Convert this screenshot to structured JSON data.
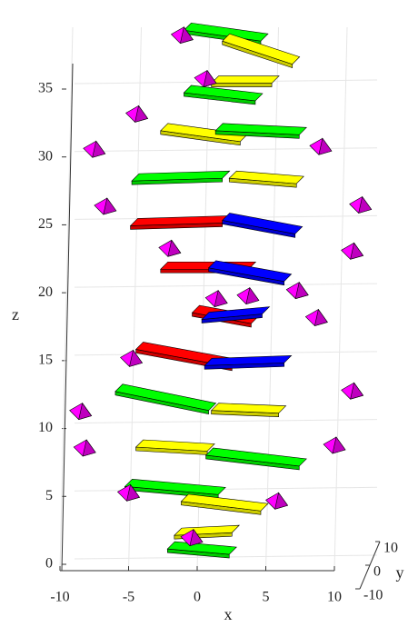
{
  "chart_data": {
    "type": "scatter3d",
    "xlabel": "x",
    "ylabel": "y",
    "zlabel": "z",
    "xlim": [
      -10,
      10
    ],
    "xticks": [
      -10,
      -5,
      0,
      5,
      10
    ],
    "ylim": [
      -10,
      10
    ],
    "yticks": [
      -10,
      0,
      10
    ],
    "zlim": [
      0,
      35
    ],
    "zticks": [
      0,
      5,
      10,
      15,
      20,
      25,
      30,
      35
    ],
    "grid": true,
    "slabs": [
      {
        "color": "#00ff00",
        "x1": -0.7,
        "z1": 39.6,
        "x2": 4.9,
        "z2": 38.8
      },
      {
        "color": "#ffff00",
        "x1": 2.1,
        "z1": 38.8,
        "x2": 7.2,
        "z2": 37.1
      },
      {
        "color": "#ffff00",
        "x1": 1.3,
        "z1": 35.7,
        "x2": 5.7,
        "z2": 35.7
      },
      {
        "color": "#00ff00",
        "x1": -0.7,
        "z1": 35.0,
        "x2": 4.5,
        "z2": 34.4
      },
      {
        "color": "#ffff00",
        "x1": -2.4,
        "z1": 32.2,
        "x2": 3.4,
        "z2": 31.4
      },
      {
        "color": "#00ff00",
        "x1": 1.6,
        "z1": 32.2,
        "x2": 7.7,
        "z2": 31.9
      },
      {
        "color": "#00ff00",
        "x1": -4.5,
        "z1": 28.5,
        "x2": 2.1,
        "z2": 28.7
      },
      {
        "color": "#ffff00",
        "x1": 2.6,
        "z1": 28.7,
        "x2": 7.5,
        "z2": 28.3
      },
      {
        "color": "#ff0000",
        "x1": -4.6,
        "z1": 25.2,
        "x2": 2.1,
        "z2": 25.4
      },
      {
        "color": "#0000ff",
        "x1": 2.1,
        "z1": 25.6,
        "x2": 7.4,
        "z2": 24.6
      },
      {
        "color": "#ff0000",
        "x1": -2.4,
        "z1": 22.0,
        "x2": 4.0,
        "z2": 22.0
      },
      {
        "color": "#0000ff",
        "x1": 1.1,
        "z1": 22.1,
        "x2": 6.6,
        "z2": 21.1
      },
      {
        "color": "#ff0000",
        "x1": -0.1,
        "z1": 18.8,
        "x2": 4.2,
        "z2": 18.0
      },
      {
        "color": "#0000ff",
        "x1": 0.6,
        "z1": 18.3,
        "x2": 5.0,
        "z2": 18.7
      },
      {
        "color": "#ff0000",
        "x1": -4.2,
        "z1": 16.1,
        "x2": 2.8,
        "z2": 14.8
      },
      {
        "color": "#0000ff",
        "x1": 0.8,
        "z1": 14.9,
        "x2": 6.6,
        "z2": 15.1
      },
      {
        "color": "#00ff00",
        "x1": -5.7,
        "z1": 13.0,
        "x2": 1.1,
        "z2": 11.6
      },
      {
        "color": "#ffff00",
        "x1": 1.3,
        "z1": 11.6,
        "x2": 6.2,
        "z2": 11.4
      },
      {
        "color": "#ffff00",
        "x1": -4.2,
        "z1": 8.9,
        "x2": 1.0,
        "z2": 8.6
      },
      {
        "color": "#00ff00",
        "x1": 0.9,
        "z1": 8.3,
        "x2": 7.7,
        "z2": 7.5
      },
      {
        "color": "#00ff00",
        "x1": -5.0,
        "z1": 6.0,
        "x2": 1.8,
        "z2": 5.4
      },
      {
        "color": "#ffff00",
        "x1": -0.9,
        "z1": 4.9,
        "x2": 4.9,
        "z2": 4.2
      },
      {
        "color": "#ffff00",
        "x1": -1.4,
        "z1": 2.4,
        "x2": 2.8,
        "z2": 2.6
      },
      {
        "color": "#00ff00",
        "x1": -1.9,
        "z1": 1.4,
        "x2": 2.6,
        "z2": 1.0
      }
    ],
    "pyramid_color": "#ff00ff",
    "pyramids": {
      "x": [
        -1.1,
        0.6,
        -4.4,
        -7.5,
        9.0,
        -6.7,
        11.9,
        -2.0,
        11.3,
        3.7,
        7.3,
        1.4,
        8.7,
        -4.8,
        11.3,
        -8.5,
        -8.2,
        10.0,
        -5.0,
        5.8,
        -0.4
      ],
      "z": [
        38.9,
        35.7,
        33.1,
        30.5,
        30.7,
        26.3,
        26.4,
        23.2,
        23.0,
        19.7,
        20.1,
        19.5,
        18.1,
        15.1,
        12.7,
        11.2,
        8.5,
        8.7,
        5.2,
        4.6,
        1.9
      ]
    }
  }
}
